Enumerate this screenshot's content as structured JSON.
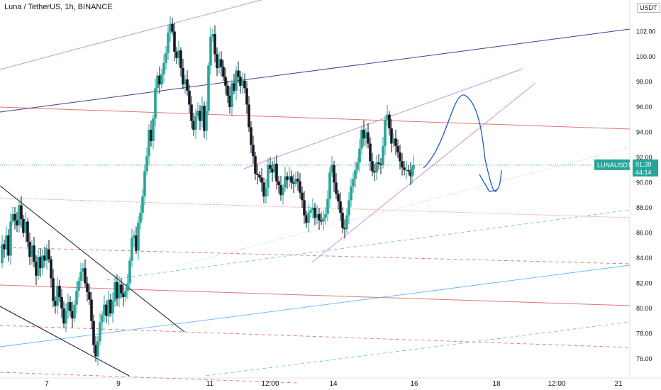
{
  "header": {
    "symbol_title": "Luna / TetherUS, 1h, BINANCE"
  },
  "price_scale": {
    "unit": "USDT"
  },
  "colors": {
    "up": "#26a69a",
    "down": "#131722",
    "last_price": "#26a69a",
    "red_level": "#e57373",
    "purple_line": "#ce93d8",
    "navy_line": "#3f3f8f",
    "blue_line": "#64b5f6",
    "annotation": "#1e5ac8"
  },
  "chart_data": {
    "type": "candlestick",
    "title": "Luna / TetherUS, 1h, BINANCE",
    "ylim": [
      74.8,
      104.0
    ],
    "y_ticks": [
      "76.00",
      "78.00",
      "80.00",
      "82.00",
      "84.00",
      "86.00",
      "88.00",
      "90.00",
      "92.00",
      "94.00",
      "96.00",
      "98.00",
      "100.00",
      "102.00"
    ],
    "x_ticks": [
      "7",
      "9",
      "11",
      "12:00",
      "14",
      "16",
      "18",
      "12:00",
      "21"
    ],
    "last_price": {
      "symbol": "LUNAUSDT",
      "price": "91.39",
      "countdown": "44:14"
    },
    "price_path": [
      [
        0,
        83.6
      ],
      [
        3,
        85.1
      ],
      [
        6,
        84.7
      ],
      [
        9,
        85.8
      ],
      [
        12,
        84.2
      ],
      [
        15,
        86.9
      ],
      [
        18,
        87.5
      ],
      [
        21,
        87.0
      ],
      [
        24,
        86.6
      ],
      [
        27,
        88.2
      ],
      [
        30,
        87.1
      ],
      [
        33,
        86.0
      ],
      [
        36,
        86.9
      ],
      [
        39,
        85.3
      ],
      [
        42,
        84.1
      ],
      [
        45,
        85.0
      ],
      [
        48,
        83.7
      ],
      [
        51,
        82.6
      ],
      [
        54,
        84.1
      ],
      [
        57,
        83.2
      ],
      [
        60,
        84.2
      ],
      [
        63,
        83.8
      ],
      [
        66,
        84.7
      ],
      [
        69,
        83.9
      ],
      [
        72,
        82.4
      ],
      [
        75,
        80.6
      ],
      [
        78,
        80.2
      ],
      [
        81,
        81.8
      ],
      [
        84,
        80.9
      ],
      [
        87,
        80.0
      ],
      [
        90,
        78.8
      ],
      [
        93,
        79.8
      ],
      [
        96,
        80.5
      ],
      [
        99,
        79.8
      ],
      [
        102,
        79.2
      ],
      [
        105,
        80.3
      ],
      [
        108,
        81.4
      ],
      [
        111,
        82.2
      ],
      [
        114,
        82.9
      ],
      [
        117,
        83.2
      ],
      [
        120,
        82.0
      ],
      [
        123,
        81.3
      ],
      [
        126,
        80.7
      ],
      [
        129,
        79.0
      ],
      [
        132,
        77.1
      ],
      [
        135,
        76.2
      ],
      [
        138,
        77.4
      ],
      [
        141,
        78.9
      ],
      [
        144,
        79.5
      ],
      [
        147,
        80.3
      ],
      [
        150,
        79.4
      ],
      [
        153,
        80.7
      ],
      [
        156,
        79.6
      ],
      [
        159,
        80.6
      ],
      [
        162,
        82.1
      ],
      [
        165,
        80.8
      ],
      [
        168,
        81.9
      ],
      [
        171,
        81.2
      ],
      [
        174,
        80.9
      ],
      [
        177,
        81.4
      ],
      [
        180,
        82.0
      ],
      [
        183,
        83.8
      ],
      [
        186,
        85.6
      ],
      [
        189,
        85.8
      ],
      [
        192,
        84.6
      ],
      [
        195,
        86.8
      ],
      [
        198,
        87.6
      ],
      [
        201,
        88.9
      ],
      [
        204,
        90.9
      ],
      [
        207,
        92.1
      ],
      [
        210,
        94.2
      ],
      [
        213,
        93.3
      ],
      [
        216,
        95.1
      ],
      [
        219,
        97.5
      ],
      [
        222,
        98.5
      ],
      [
        225,
        97.8
      ],
      [
        228,
        98.6
      ],
      [
        231,
        99.5
      ],
      [
        234,
        100.3
      ],
      [
        237,
        101.9
      ],
      [
        240,
        102.6
      ],
      [
        243,
        102.0
      ],
      [
        246,
        100.4
      ],
      [
        249,
        99.9
      ],
      [
        252,
        100.5
      ],
      [
        255,
        99.1
      ],
      [
        258,
        97.8
      ],
      [
        261,
        98.2
      ],
      [
        264,
        97.3
      ],
      [
        267,
        96.2
      ],
      [
        270,
        94.9
      ],
      [
        273,
        94.2
      ],
      [
        276,
        95.3
      ],
      [
        279,
        95.7
      ],
      [
        282,
        94.9
      ],
      [
        285,
        96.1
      ],
      [
        288,
        94.1
      ],
      [
        291,
        95.7
      ],
      [
        294,
        99.3
      ],
      [
        297,
        101.6
      ],
      [
        300,
        101.8
      ],
      [
        303,
        100.2
      ],
      [
        306,
        99.1
      ],
      [
        309,
        99.8
      ],
      [
        312,
        99.2
      ],
      [
        315,
        98.4
      ],
      [
        318,
        97.7
      ],
      [
        321,
        96.9
      ],
      [
        324,
        96.0
      ],
      [
        327,
        97.9
      ],
      [
        330,
        97.3
      ],
      [
        333,
        98.9
      ],
      [
        336,
        98.4
      ],
      [
        339,
        97.7
      ],
      [
        342,
        98.1
      ],
      [
        345,
        97.5
      ],
      [
        348,
        96.2
      ],
      [
        351,
        94.4
      ],
      [
        354,
        93.0
      ],
      [
        357,
        92.1
      ],
      [
        360,
        90.7
      ],
      [
        363,
        90.6
      ],
      [
        366,
        90.4
      ],
      [
        369,
        90.0
      ],
      [
        372,
        88.9
      ],
      [
        375,
        89.6
      ],
      [
        378,
        91.4
      ],
      [
        381,
        91.1
      ],
      [
        384,
        90.8
      ],
      [
        387,
        91.5
      ],
      [
        390,
        90.1
      ],
      [
        393,
        89.8
      ],
      [
        396,
        89.0
      ],
      [
        399,
        89.6
      ],
      [
        402,
        90.5
      ],
      [
        405,
        90.2
      ],
      [
        408,
        90.5
      ],
      [
        411,
        90.0
      ],
      [
        414,
        89.9
      ],
      [
        417,
        90.3
      ],
      [
        420,
        90.1
      ],
      [
        423,
        89.2
      ],
      [
        426,
        88.6
      ],
      [
        429,
        87.4
      ],
      [
        432,
        86.8
      ],
      [
        435,
        87.6
      ],
      [
        438,
        87.8
      ],
      [
        441,
        88.0
      ],
      [
        444,
        87.2
      ],
      [
        447,
        87.5
      ],
      [
        450,
        87.0
      ],
      [
        453,
        86.9
      ],
      [
        456,
        87.2
      ],
      [
        459,
        87.5
      ],
      [
        462,
        88.7
      ],
      [
        465,
        90.8
      ],
      [
        468,
        91.4
      ],
      [
        471,
        90.0
      ],
      [
        474,
        89.1
      ],
      [
        477,
        88.5
      ],
      [
        480,
        87.6
      ],
      [
        483,
        86.4
      ],
      [
        486,
        86.3
      ],
      [
        489,
        87.4
      ],
      [
        492,
        88.6
      ],
      [
        495,
        89.7
      ],
      [
        498,
        90.3
      ],
      [
        501,
        91.0
      ],
      [
        504,
        91.6
      ],
      [
        507,
        92.7
      ],
      [
        510,
        94.2
      ],
      [
        513,
        93.5
      ],
      [
        516,
        94.0
      ],
      [
        519,
        93.1
      ],
      [
        522,
        91.7
      ],
      [
        525,
        90.9
      ],
      [
        528,
        90.8
      ],
      [
        531,
        91.6
      ],
      [
        534,
        91.5
      ],
      [
        537,
        91.4
      ],
      [
        540,
        92.9
      ],
      [
        543,
        95.0
      ],
      [
        546,
        95.4
      ],
      [
        549,
        94.3
      ],
      [
        552,
        93.1
      ],
      [
        555,
        93.5
      ],
      [
        558,
        92.9
      ],
      [
        561,
        92.4
      ],
      [
        564,
        91.7
      ],
      [
        567,
        91.2
      ],
      [
        570,
        91.0
      ],
      [
        573,
        91.0
      ],
      [
        576,
        90.9
      ],
      [
        579,
        90.5
      ],
      [
        581,
        91.1
      ],
      [
        583,
        91.4
      ]
    ]
  }
}
